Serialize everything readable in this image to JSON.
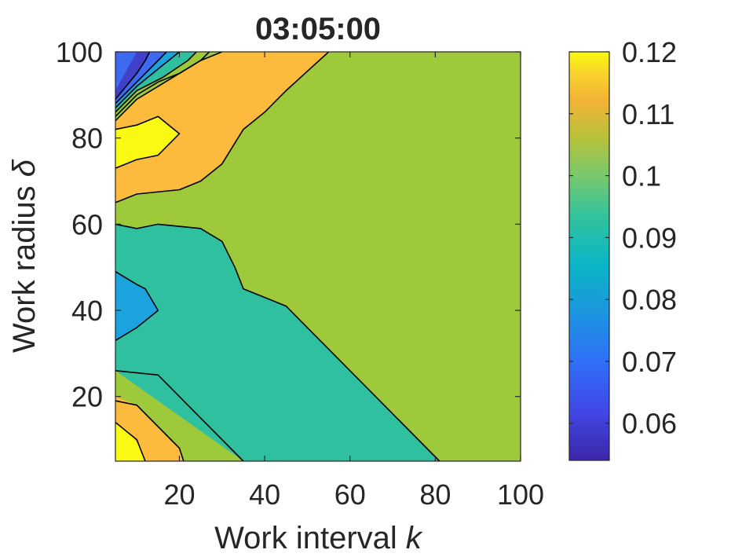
{
  "chart_data": {
    "type": "contour",
    "title": "03:05:00",
    "xlabel": "Work interval",
    "xlabel_var": "k",
    "ylabel": "Work radius",
    "ylabel_var": "δ",
    "xlim": [
      5,
      100
    ],
    "ylim": [
      5,
      100
    ],
    "x_ticks": [
      20,
      40,
      60,
      80,
      100
    ],
    "y_ticks": [
      20,
      40,
      60,
      80,
      100
    ],
    "colorbar": {
      "range": [
        0.054,
        0.12
      ],
      "ticks": [
        0.06,
        0.07,
        0.08,
        0.09,
        0.1,
        0.11,
        0.12
      ],
      "tick_labels": [
        "0.06",
        "0.07",
        "0.08",
        "0.09",
        "0.1",
        "0.11",
        "0.12"
      ],
      "colormap": "parula"
    },
    "levels": [
      {
        "level": 0.1,
        "color": "#9dc93b",
        "description": "background"
      },
      {
        "level": 0.09,
        "color": "#2fc19f"
      },
      {
        "level": 0.11,
        "color": "#fcbb3d"
      },
      {
        "level": 0.12,
        "color": "#f9f914"
      },
      {
        "level": 0.08,
        "color": "#1ba3df"
      },
      {
        "level": 0.07,
        "color": "#3e69f1"
      },
      {
        "level": 0.06,
        "color": "#4140c8"
      }
    ],
    "regions": [
      {
        "level": 0.09,
        "polygon": [
          [
            5,
            26
          ],
          [
            5,
            60
          ],
          [
            10,
            59
          ],
          [
            15,
            60
          ],
          [
            25,
            59
          ],
          [
            30,
            56
          ],
          [
            33,
            50
          ],
          [
            35,
            45
          ],
          [
            40,
            43
          ],
          [
            45,
            41
          ],
          [
            81,
            5
          ],
          [
            35,
            5
          ]
        ]
      },
      {
        "level": 0.11,
        "polygon": [
          [
            5,
            65
          ],
          [
            10,
            67
          ],
          [
            20,
            68
          ],
          [
            25,
            70
          ],
          [
            30,
            74
          ],
          [
            35,
            82
          ],
          [
            40,
            86
          ],
          [
            45,
            91
          ],
          [
            55,
            100
          ],
          [
            30,
            100
          ],
          [
            25,
            98
          ],
          [
            20,
            95
          ],
          [
            15,
            92
          ],
          [
            10,
            89
          ],
          [
            5,
            84
          ]
        ]
      },
      {
        "level": 0.12,
        "polygon": [
          [
            5,
            73
          ],
          [
            10,
            75
          ],
          [
            15,
            76
          ],
          [
            20,
            81
          ],
          [
            15,
            85
          ],
          [
            10,
            83
          ],
          [
            5,
            82
          ]
        ]
      },
      {
        "level": 0.11,
        "polygon": [
          [
            5,
            20
          ],
          [
            10,
            18
          ],
          [
            15,
            13
          ],
          [
            20,
            8
          ],
          [
            21,
            5
          ],
          [
            5,
            5
          ]
        ]
      },
      {
        "level": 0.12,
        "polygon": [
          [
            5,
            14
          ],
          [
            8,
            12
          ],
          [
            11,
            8
          ],
          [
            12,
            5
          ],
          [
            5,
            5
          ]
        ]
      },
      {
        "level": 0.08,
        "polygon": [
          [
            5,
            33
          ],
          [
            10,
            36
          ],
          [
            15,
            40
          ],
          [
            12,
            45
          ],
          [
            10,
            46
          ],
          [
            5,
            49
          ]
        ]
      },
      {
        "level": 0.1,
        "polygon": [
          [
            5,
            85
          ],
          [
            10,
            90
          ],
          [
            15,
            93
          ],
          [
            20,
            95
          ],
          [
            25,
            98
          ],
          [
            27,
            100
          ],
          [
            5,
            100
          ]
        ]
      },
      {
        "level": 0.09,
        "polygon": [
          [
            5,
            86
          ],
          [
            10,
            91
          ],
          [
            16,
            94
          ],
          [
            22,
            98
          ],
          [
            24,
            100
          ],
          [
            5,
            100
          ]
        ]
      },
      {
        "level": 0.08,
        "polygon": [
          [
            5,
            87
          ],
          [
            10,
            92
          ],
          [
            15,
            96
          ],
          [
            20,
            100
          ],
          [
            5,
            100
          ]
        ]
      },
      {
        "level": 0.07,
        "polygon": [
          [
            5,
            88
          ],
          [
            10,
            93
          ],
          [
            14,
            97
          ],
          [
            17,
            100
          ],
          [
            5,
            100
          ]
        ]
      },
      {
        "level": 0.06,
        "polygon": [
          [
            5,
            89
          ],
          [
            10,
            95
          ],
          [
            12,
            98
          ],
          [
            13,
            100
          ],
          [
            10,
            100
          ],
          [
            5,
            91
          ]
        ]
      }
    ],
    "contour_lines": [
      [
        [
          5,
          26
        ],
        [
          15,
          25
        ],
        [
          25,
          15
        ],
        [
          35,
          5
        ]
      ],
      [
        [
          5,
          19
        ],
        [
          10,
          18
        ],
        [
          20,
          8
        ],
        [
          21,
          5
        ]
      ],
      [
        [
          5,
          14
        ],
        [
          10,
          10
        ],
        [
          12,
          5
        ]
      ],
      [
        [
          5,
          60
        ],
        [
          10,
          59
        ],
        [
          15,
          60
        ],
        [
          25,
          59
        ],
        [
          30,
          56
        ],
        [
          33,
          50
        ],
        [
          35,
          45
        ],
        [
          40,
          43
        ],
        [
          45,
          41
        ],
        [
          81,
          5
        ]
      ],
      [
        [
          5,
          49
        ],
        [
          10,
          46
        ],
        [
          12,
          45
        ],
        [
          15,
          40
        ],
        [
          10,
          36
        ],
        [
          5,
          33
        ]
      ],
      [
        [
          5,
          65
        ],
        [
          10,
          67
        ],
        [
          20,
          68
        ],
        [
          25,
          70
        ],
        [
          30,
          74
        ],
        [
          35,
          82
        ],
        [
          40,
          86
        ],
        [
          45,
          91
        ],
        [
          55,
          100
        ]
      ],
      [
        [
          5,
          73
        ],
        [
          10,
          75
        ],
        [
          15,
          76
        ],
        [
          20,
          81
        ],
        [
          15,
          85
        ],
        [
          10,
          83
        ],
        [
          5,
          82
        ]
      ],
      [
        [
          5,
          84
        ],
        [
          10,
          89
        ],
        [
          15,
          92
        ],
        [
          20,
          95
        ],
        [
          25,
          98
        ],
        [
          30,
          100
        ]
      ],
      [
        [
          5,
          85
        ],
        [
          10,
          90
        ],
        [
          15,
          93
        ],
        [
          20,
          95
        ],
        [
          25,
          98
        ],
        [
          27,
          100
        ]
      ],
      [
        [
          5,
          86
        ],
        [
          10,
          91
        ],
        [
          16,
          94
        ],
        [
          22,
          98
        ],
        [
          24,
          100
        ]
      ],
      [
        [
          5,
          87
        ],
        [
          10,
          92
        ],
        [
          15,
          96
        ],
        [
          20,
          100
        ]
      ],
      [
        [
          5,
          88
        ],
        [
          10,
          93
        ],
        [
          14,
          97
        ],
        [
          17,
          100
        ]
      ],
      [
        [
          5,
          89
        ],
        [
          10,
          95
        ],
        [
          12,
          98
        ],
        [
          13,
          100
        ]
      ]
    ]
  }
}
